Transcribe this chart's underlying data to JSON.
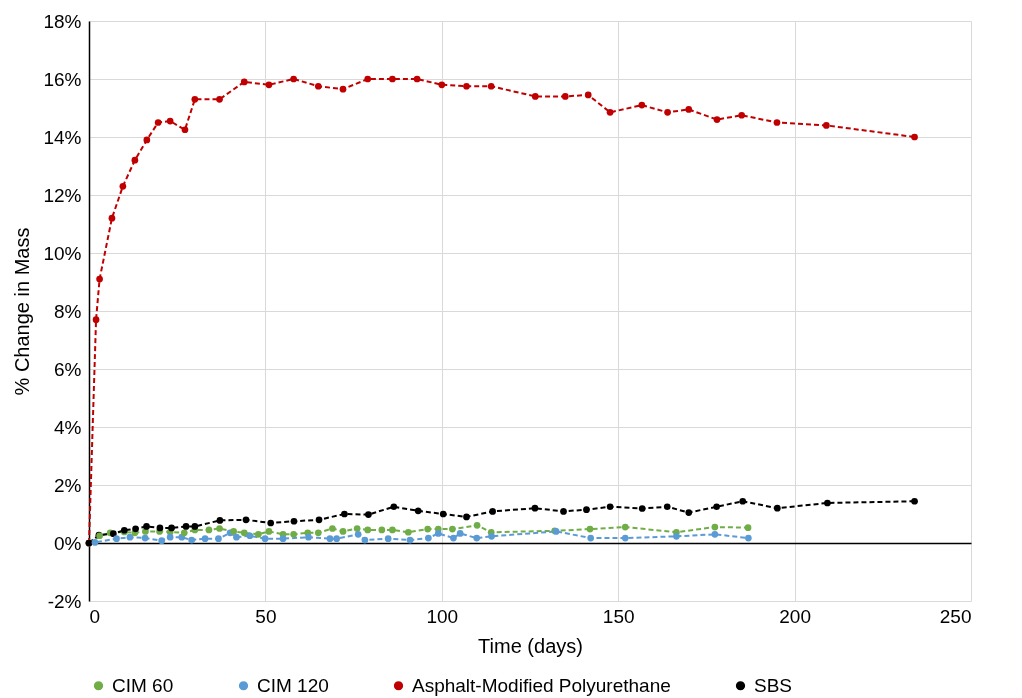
{
  "chart_data": {
    "type": "line",
    "xlabel": "Time (days)",
    "ylabel": "% Change in Mass",
    "xlim": [
      0,
      250
    ],
    "xticks": [
      0,
      50,
      100,
      150,
      200,
      250
    ],
    "ylim": [
      -2,
      18
    ],
    "yticks": [
      {
        "value": -2,
        "label": "-2%"
      },
      {
        "value": 0,
        "label": "0%"
      },
      {
        "value": 2,
        "label": "2%"
      },
      {
        "value": 4,
        "label": "4%"
      },
      {
        "value": 6,
        "label": "6%"
      },
      {
        "value": 8,
        "label": "8%"
      },
      {
        "value": 10,
        "label": "10%"
      },
      {
        "value": 12,
        "label": "12%"
      },
      {
        "value": 14,
        "label": "14%"
      },
      {
        "value": 16,
        "label": "16%"
      },
      {
        "value": 18,
        "label": "18%"
      }
    ],
    "grid": true,
    "legend": "bottom",
    "marker": "circle",
    "line_style": "dashed",
    "series": [
      {
        "name": "CIM 60",
        "color": "#70ad47",
        "x": [
          0,
          3,
          6,
          10,
          13,
          16,
          20,
          23,
          27,
          30,
          34,
          37,
          41,
          44,
          48,
          51,
          55,
          58,
          62,
          65,
          69,
          72,
          76,
          79,
          83,
          86,
          90.5,
          96,
          99,
          103,
          110,
          114,
          132,
          142,
          152,
          166.5,
          177.4,
          186.8
        ],
        "values": [
          0,
          0.25,
          0.35,
          0.38,
          0.35,
          0.4,
          0.4,
          0.38,
          0.35,
          0.45,
          0.45,
          0.5,
          0.4,
          0.35,
          0.3,
          0.4,
          0.3,
          0.3,
          0.35,
          0.35,
          0.5,
          0.4,
          0.5,
          0.45,
          0.45,
          0.45,
          0.37,
          0.48,
          0.48,
          0.48,
          0.61,
          0.37,
          0.42,
          0.48,
          0.55,
          0.37,
          0.55,
          0.53
        ]
      },
      {
        "name": "CIM 120",
        "color": "#5b9bd5",
        "x": [
          0,
          1.7,
          7.8,
          11.6,
          15.9,
          20.6,
          23,
          26.3,
          29.1,
          32.9,
          36.7,
          40,
          41.8,
          45.6,
          49.9,
          55,
          62.2,
          68.3,
          70.2,
          76.3,
          78.2,
          84.8,
          91,
          96.2,
          99,
          103.3,
          105.2,
          109.9,
          114.1,
          132.4,
          142.2,
          152,
          166.5,
          177.4,
          186.9
        ],
        "values": [
          0,
          0.02,
          0.15,
          0.2,
          0.17,
          0.08,
          0.2,
          0.2,
          0.1,
          0.15,
          0.15,
          0.35,
          0.2,
          0.25,
          0.15,
          0.15,
          0.2,
          0.15,
          0.15,
          0.3,
          0.1,
          0.15,
          0.1,
          0.17,
          0.33,
          0.17,
          0.33,
          0.17,
          0.23,
          0.4,
          0.17,
          0.17,
          0.23,
          0.3,
          0.17
        ]
      },
      {
        "name": "Asphalt-Modified Polyurethane",
        "color": "#c00000",
        "x": [
          0,
          2,
          3,
          6.5,
          9.6,
          13,
          16.4,
          19.6,
          23,
          27.2,
          30,
          37,
          44,
          51,
          58,
          65,
          72,
          79,
          86,
          93,
          100,
          107,
          114,
          126.5,
          135,
          141.5,
          147.7,
          156.7,
          164,
          170,
          178,
          185,
          195,
          209,
          234
        ],
        "values": [
          0,
          7.7,
          9.1,
          11.2,
          12.3,
          13.2,
          13.9,
          14.5,
          14.55,
          14.25,
          15.3,
          15.3,
          15.9,
          15.8,
          16,
          15.75,
          15.65,
          16,
          16,
          16,
          15.8,
          15.75,
          15.75,
          15.4,
          15.4,
          15.45,
          14.85,
          15.1,
          14.85,
          14.95,
          14.6,
          14.75,
          14.5,
          14.4,
          14
        ]
      },
      {
        "name": "SBS",
        "color": "#000000",
        "x": [
          0,
          2.8,
          6.9,
          10,
          13.2,
          16.3,
          20.1,
          23.4,
          27.5,
          30,
          37.1,
          44.5,
          51.5,
          58.1,
          65.2,
          72.4,
          79.2,
          86.4,
          93.3,
          100.4,
          107,
          114.4,
          126.4,
          134.5,
          141,
          147.7,
          156.8,
          163.9,
          170,
          177.9,
          185.3,
          195.1,
          209.3,
          234
        ],
        "values": [
          0,
          0.27,
          0.32,
          0.44,
          0.49,
          0.57,
          0.52,
          0.52,
          0.57,
          0.57,
          0.78,
          0.8,
          0.69,
          0.75,
          0.8,
          1,
          0.98,
          1.25,
          1.11,
          1,
          0.9,
          1.09,
          1.2,
          1.09,
          1.15,
          1.25,
          1.19,
          1.25,
          1.05,
          1.25,
          1.44,
          1.2,
          1.38,
          1.44
        ]
      }
    ]
  }
}
